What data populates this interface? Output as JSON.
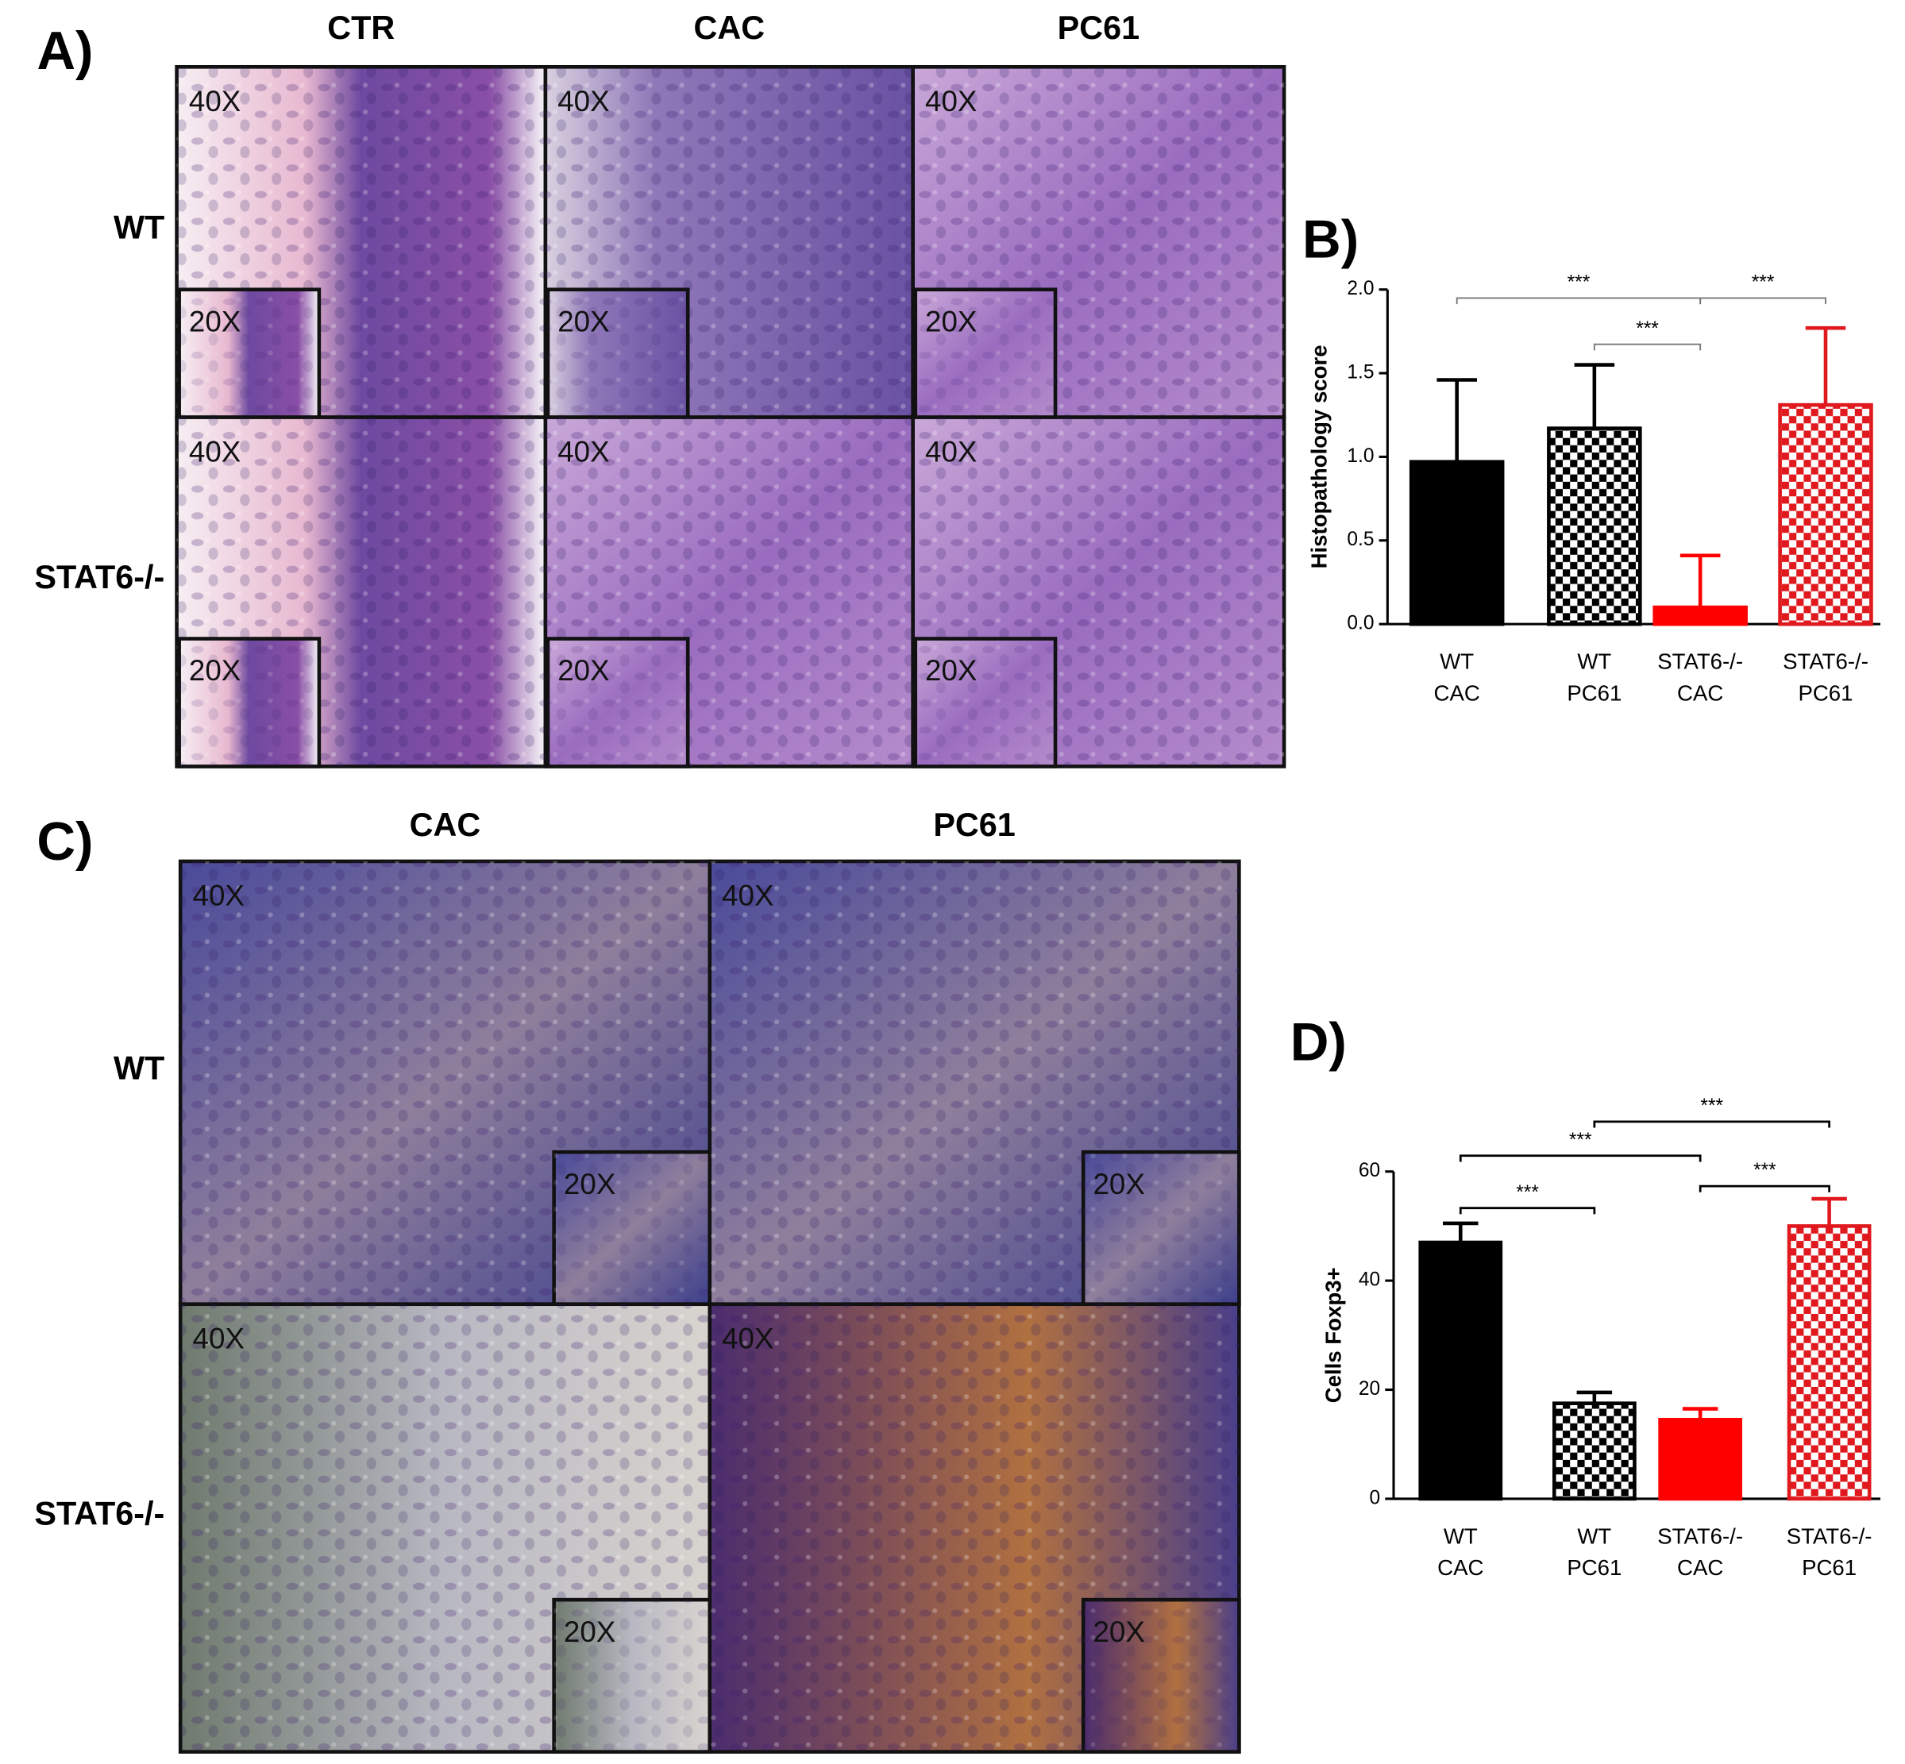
{
  "panel_a": {
    "label": "A)",
    "columns": [
      "CTR",
      "CAC",
      "PC61"
    ],
    "rows": [
      "WT",
      "STAT6-/-"
    ],
    "cells": [
      [
        {
          "main": "40X",
          "inset": "20X"
        },
        {
          "main": "40X",
          "inset": "20X"
        },
        {
          "main": "40X",
          "inset": "20X"
        }
      ],
      [
        {
          "main": "40X",
          "inset": "20X"
        },
        {
          "main": "40X",
          "inset": "20X"
        },
        {
          "main": "40X",
          "inset": "20X"
        }
      ]
    ]
  },
  "panel_c": {
    "label": "C)",
    "columns": [
      "CAC",
      "PC61"
    ],
    "rows": [
      "WT",
      "STAT6-/-"
    ],
    "cells": [
      [
        {
          "main": "40X",
          "inset": "20X"
        },
        {
          "main": "40X",
          "inset": "20X"
        }
      ],
      [
        {
          "main": "40X",
          "inset": "20X"
        },
        {
          "main": "40X",
          "inset": "20X"
        }
      ]
    ]
  },
  "chart_data": [
    {
      "type": "bar",
      "panel_label": "B)",
      "y_label": "Histopathology score",
      "categories": [
        [
          "WT",
          "CAC"
        ],
        [
          "WT",
          "PC61"
        ],
        [
          "STAT6-/-",
          "CAC"
        ],
        [
          "STAT6-/-",
          "PC61"
        ]
      ],
      "values": [
        0.97,
        1.17,
        0.1,
        1.31
      ],
      "errors": [
        0.49,
        0.38,
        0.31,
        0.46
      ],
      "colors": [
        "#000000",
        "#000000",
        "#ff0000",
        "#e0191e"
      ],
      "patterns": [
        "solid",
        "checker",
        "solid",
        "checker"
      ],
      "ylim": [
        0,
        2.0
      ],
      "yticks": [
        {
          "value": 0,
          "label": "0.0"
        },
        {
          "value": 0.5,
          "label": "0.5"
        },
        {
          "value": 1,
          "label": "1.0"
        },
        {
          "value": 1.5,
          "label": "1.5"
        },
        {
          "value": 2,
          "label": "2.0"
        }
      ],
      "significance": [
        {
          "pair": [
            0,
            2
          ],
          "label": "***"
        },
        {
          "pair": [
            2,
            3
          ],
          "label": "***"
        },
        {
          "pair": [
            1,
            2
          ],
          "label": "***"
        }
      ]
    },
    {
      "type": "bar",
      "panel_label": "D)",
      "y_label": "Cells Foxp3+",
      "categories": [
        [
          "WT",
          "CAC"
        ],
        [
          "WT",
          "PC61"
        ],
        [
          "STAT6-/-",
          "CAC"
        ],
        [
          "STAT6-/-",
          "PC61"
        ]
      ],
      "values": [
        47,
        17.5,
        14.5,
        50
      ],
      "errors": [
        3.5,
        2,
        2,
        5
      ],
      "colors": [
        "#000000",
        "#000000",
        "#ff0000",
        "#e0191e"
      ],
      "patterns": [
        "solid",
        "checker",
        "solid",
        "checker"
      ],
      "ylim": [
        0,
        60
      ],
      "yticks": [
        0,
        20,
        40,
        60
      ],
      "significance": [
        {
          "pair": [
            0,
            1
          ],
          "label": "***"
        },
        {
          "pair": [
            2,
            3
          ],
          "label": "***"
        },
        {
          "pair": [
            0,
            2
          ],
          "label": "***"
        },
        {
          "pair": [
            1,
            3
          ],
          "label": "***"
        }
      ]
    }
  ]
}
